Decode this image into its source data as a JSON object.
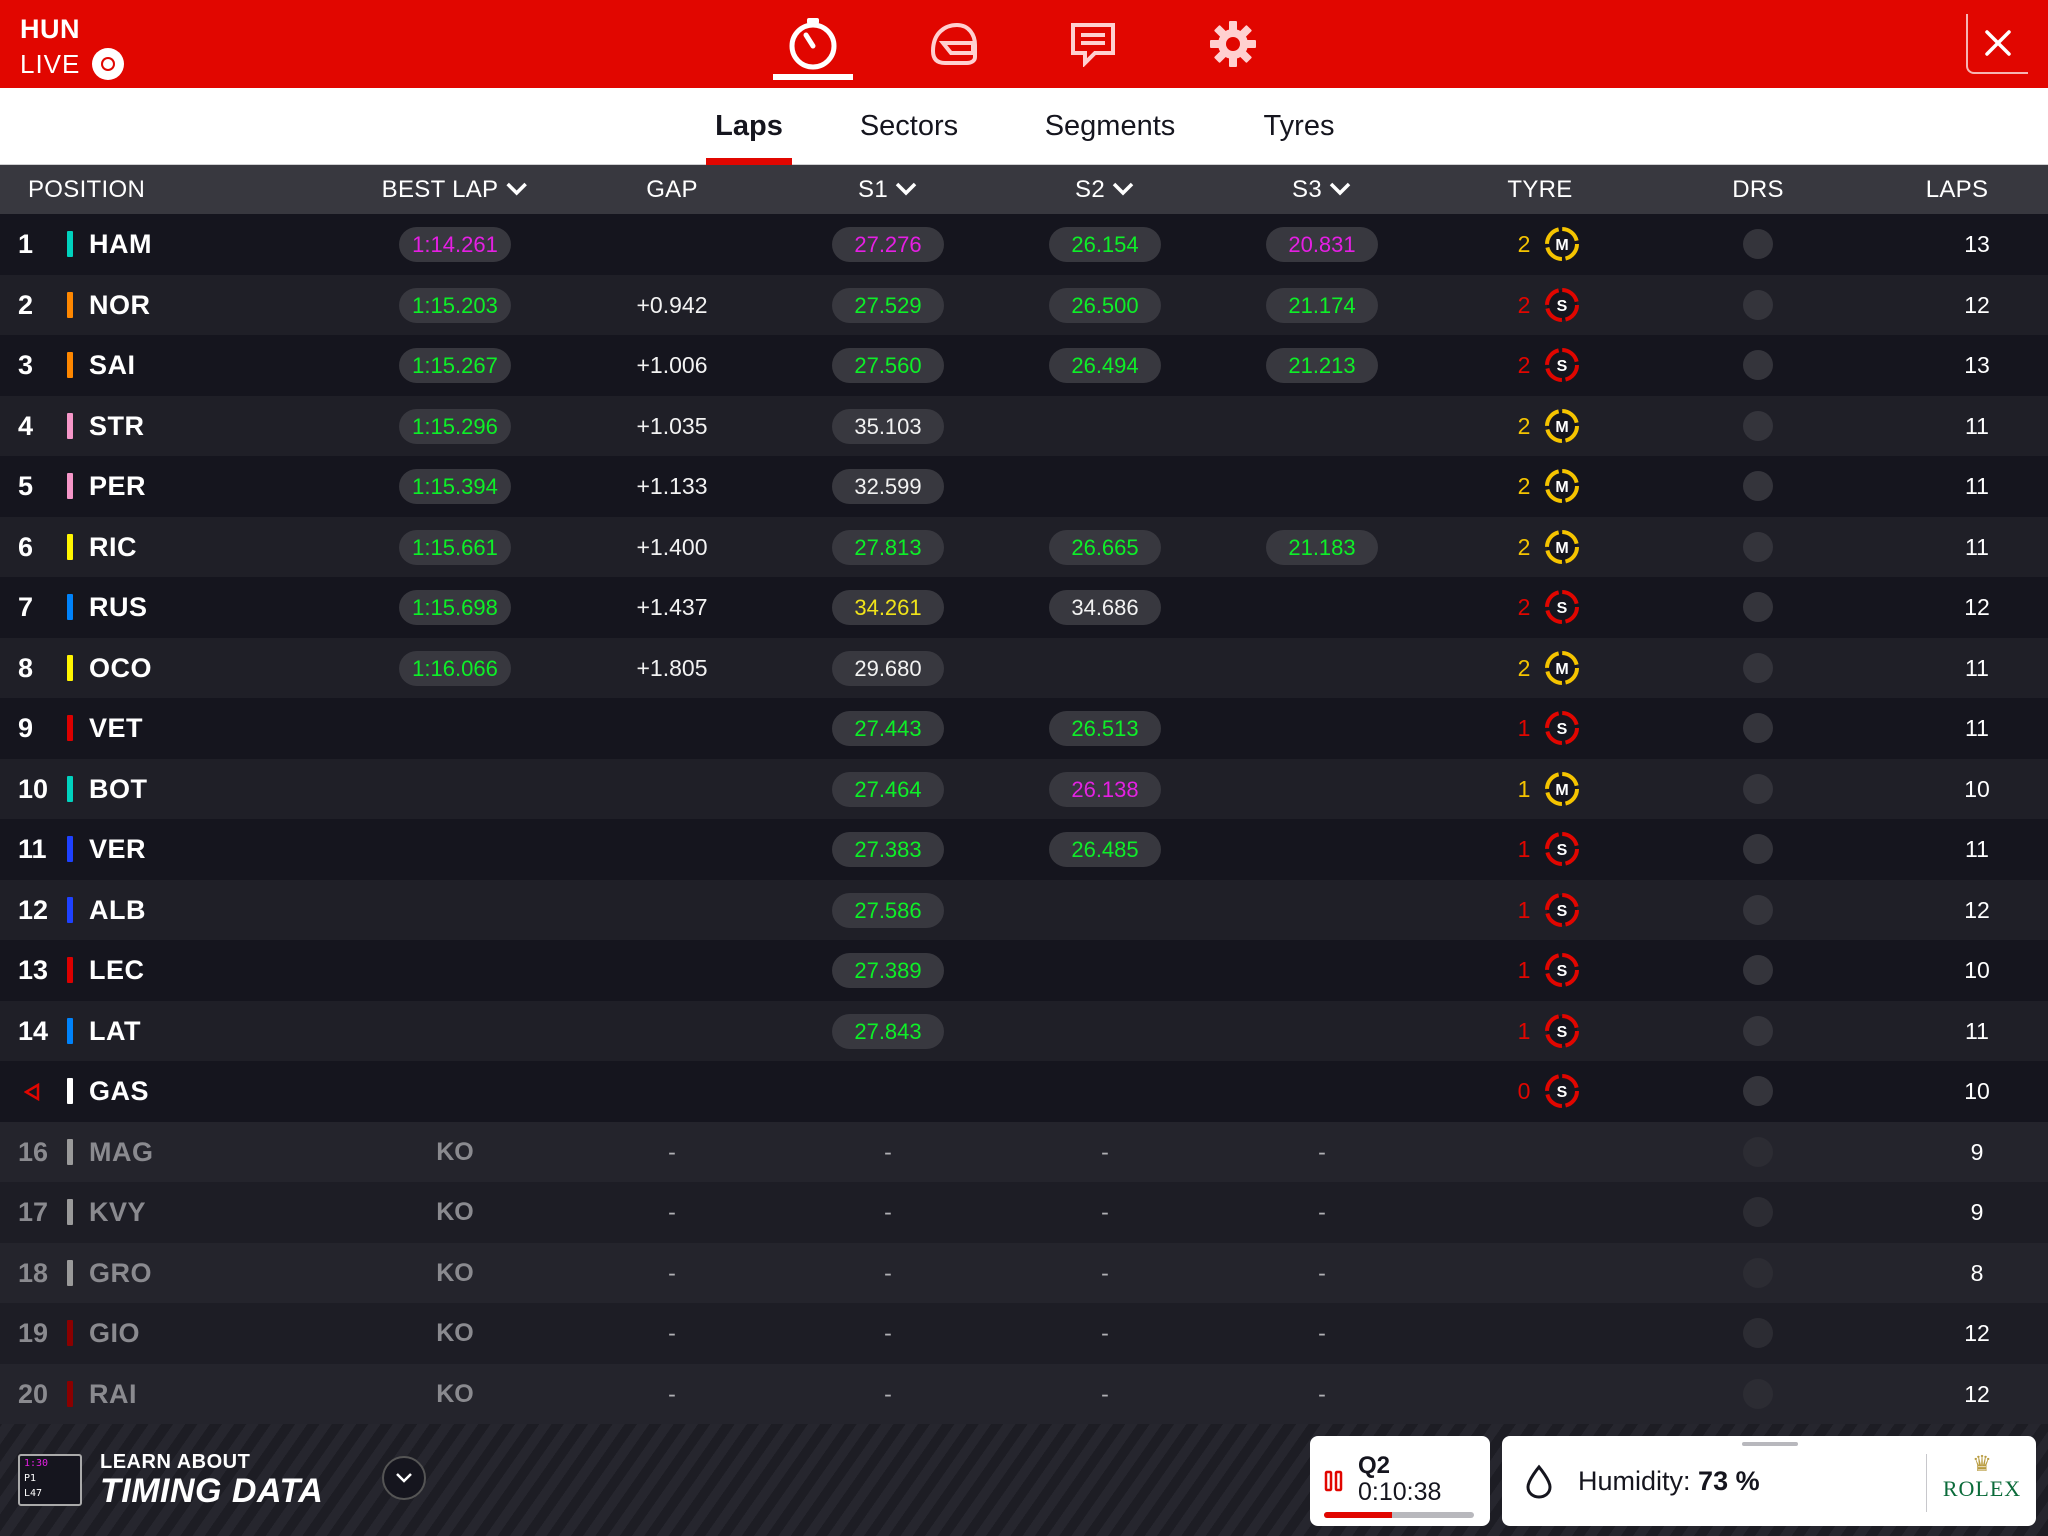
{
  "header": {
    "session_code": "HUN",
    "live_label": "LIVE",
    "nav": [
      "stopwatch-icon",
      "helmet-icon",
      "message-icon",
      "gear-icon"
    ],
    "accent": "#e10600"
  },
  "tabs": [
    {
      "label": "Laps",
      "active": true
    },
    {
      "label": "Sectors",
      "active": false
    },
    {
      "label": "Segments",
      "active": false
    },
    {
      "label": "Tyres",
      "active": false
    }
  ],
  "columns": {
    "position": "POSITION",
    "best_lap": "BEST LAP",
    "gap": "GAP",
    "s1": "S1",
    "s2": "S2",
    "s3": "S3",
    "tyre": "TYRE",
    "drs": "DRS",
    "laps": "LAPS"
  },
  "colors": {
    "green": "#0eef28",
    "purple": "#e51fe3",
    "yellow": "#f0e31a",
    "tyre_soft": "#e10600",
    "tyre_medium": "#f5c400"
  },
  "rows": [
    {
      "pos": "1",
      "driver": "HAM",
      "team": "#00d2be",
      "best": "1:14.261",
      "best_c": "purple",
      "gap": "",
      "s1": "27.276",
      "s1_c": "purple",
      "s2": "26.154",
      "s2_c": "green",
      "s3": "20.831",
      "s3_c": "purple",
      "stint": "2",
      "tyre": "M",
      "laps": "13"
    },
    {
      "pos": "2",
      "driver": "NOR",
      "team": "#ff8700",
      "best": "1:15.203",
      "best_c": "green",
      "gap": "+0.942",
      "s1": "27.529",
      "s1_c": "green",
      "s2": "26.500",
      "s2_c": "green",
      "s3": "21.174",
      "s3_c": "green",
      "stint": "2",
      "tyre": "S",
      "laps": "12"
    },
    {
      "pos": "3",
      "driver": "SAI",
      "team": "#ff8700",
      "best": "1:15.267",
      "best_c": "green",
      "gap": "+1.006",
      "s1": "27.560",
      "s1_c": "green",
      "s2": "26.494",
      "s2_c": "green",
      "s3": "21.213",
      "s3_c": "green",
      "stint": "2",
      "tyre": "S",
      "laps": "13"
    },
    {
      "pos": "4",
      "driver": "STR",
      "team": "#f596c8",
      "best": "1:15.296",
      "best_c": "green",
      "gap": "+1.035",
      "s1": "35.103",
      "s1_c": "white",
      "s2": "",
      "s2_c": "",
      "s3": "",
      "s3_c": "",
      "stint": "2",
      "tyre": "M",
      "laps": "11"
    },
    {
      "pos": "5",
      "driver": "PER",
      "team": "#f596c8",
      "best": "1:15.394",
      "best_c": "green",
      "gap": "+1.133",
      "s1": "32.599",
      "s1_c": "white",
      "s2": "",
      "s2_c": "",
      "s3": "",
      "s3_c": "",
      "stint": "2",
      "tyre": "M",
      "laps": "11"
    },
    {
      "pos": "6",
      "driver": "RIC",
      "team": "#fff500",
      "best": "1:15.661",
      "best_c": "green",
      "gap": "+1.400",
      "s1": "27.813",
      "s1_c": "green",
      "s2": "26.665",
      "s2_c": "green",
      "s3": "21.183",
      "s3_c": "green",
      "stint": "2",
      "tyre": "M",
      "laps": "11"
    },
    {
      "pos": "7",
      "driver": "RUS",
      "team": "#0082fa",
      "best": "1:15.698",
      "best_c": "green",
      "gap": "+1.437",
      "s1": "34.261",
      "s1_c": "yellow",
      "s2": "34.686",
      "s2_c": "white",
      "s3": "",
      "s3_c": "",
      "stint": "2",
      "tyre": "S",
      "laps": "12"
    },
    {
      "pos": "8",
      "driver": "OCO",
      "team": "#fff500",
      "best": "1:16.066",
      "best_c": "green",
      "gap": "+1.805",
      "s1": "29.680",
      "s1_c": "white",
      "s2": "",
      "s2_c": "",
      "s3": "",
      "s3_c": "",
      "stint": "2",
      "tyre": "M",
      "laps": "11"
    },
    {
      "pos": "9",
      "driver": "VET",
      "team": "#dc0000",
      "best": "",
      "best_c": "",
      "gap": "",
      "s1": "27.443",
      "s1_c": "green",
      "s2": "26.513",
      "s2_c": "green",
      "s3": "",
      "s3_c": "",
      "stint": "1",
      "tyre": "S",
      "laps": "11"
    },
    {
      "pos": "10",
      "driver": "BOT",
      "team": "#00d2be",
      "best": "",
      "best_c": "",
      "gap": "",
      "s1": "27.464",
      "s1_c": "green",
      "s2": "26.138",
      "s2_c": "purple",
      "s3": "",
      "s3_c": "",
      "stint": "1",
      "tyre": "M",
      "laps": "10"
    },
    {
      "pos": "11",
      "driver": "VER",
      "team": "#1e41ff",
      "best": "",
      "best_c": "",
      "gap": "",
      "s1": "27.383",
      "s1_c": "green",
      "s2": "26.485",
      "s2_c": "green",
      "s3": "",
      "s3_c": "",
      "stint": "1",
      "tyre": "S",
      "laps": "11"
    },
    {
      "pos": "12",
      "driver": "ALB",
      "team": "#1e41ff",
      "best": "",
      "best_c": "",
      "gap": "",
      "s1": "27.586",
      "s1_c": "green",
      "s2": "",
      "s2_c": "",
      "s3": "",
      "s3_c": "",
      "stint": "1",
      "tyre": "S",
      "laps": "12"
    },
    {
      "pos": "13",
      "driver": "LEC",
      "team": "#dc0000",
      "best": "",
      "best_c": "",
      "gap": "",
      "s1": "27.389",
      "s1_c": "green",
      "s2": "",
      "s2_c": "",
      "s3": "",
      "s3_c": "",
      "stint": "1",
      "tyre": "S",
      "laps": "10"
    },
    {
      "pos": "14",
      "driver": "LAT",
      "team": "#0082fa",
      "best": "",
      "best_c": "",
      "gap": "",
      "s1": "27.843",
      "s1_c": "green",
      "s2": "",
      "s2_c": "",
      "s3": "",
      "s3_c": "",
      "stint": "1",
      "tyre": "S",
      "laps": "11"
    },
    {
      "pos": "",
      "pos_icon": "pit-arrow-icon",
      "driver": "GAS",
      "team": "#ffffff",
      "best": "",
      "best_c": "",
      "gap": "",
      "s1": "",
      "s1_c": "",
      "s2": "",
      "s2_c": "",
      "s3": "",
      "s3_c": "",
      "stint": "0",
      "tyre": "S",
      "laps": "10"
    },
    {
      "pos": "16",
      "driver": "MAG",
      "team": "#9a9a9a",
      "knocked_out": true,
      "best": "KO",
      "gap": "-",
      "s1": "-",
      "s2": "-",
      "s3": "-",
      "stint": "",
      "tyre": "",
      "laps": "9"
    },
    {
      "pos": "17",
      "driver": "KVY",
      "team": "#9a9a9a",
      "knocked_out": true,
      "best": "KO",
      "gap": "-",
      "s1": "-",
      "s2": "-",
      "s3": "-",
      "stint": "",
      "tyre": "",
      "laps": "9"
    },
    {
      "pos": "18",
      "driver": "GRO",
      "team": "#9a9a9a",
      "knocked_out": true,
      "best": "KO",
      "gap": "-",
      "s1": "-",
      "s2": "-",
      "s3": "-",
      "stint": "",
      "tyre": "",
      "laps": "8"
    },
    {
      "pos": "19",
      "driver": "GIO",
      "team": "#8b0000",
      "knocked_out": true,
      "best": "KO",
      "gap": "-",
      "s1": "-",
      "s2": "-",
      "s3": "-",
      "stint": "",
      "tyre": "",
      "laps": "12"
    },
    {
      "pos": "20",
      "driver": "RAI",
      "team": "#8b0000",
      "knocked_out": true,
      "best": "KO",
      "gap": "-",
      "s1": "-",
      "s2": "-",
      "s3": "-",
      "stint": "",
      "tyre": "",
      "laps": "12"
    }
  ],
  "footer": {
    "logo_lines": [
      "1:30",
      "P1",
      "L47"
    ],
    "learn_label": "LEARN ABOUT",
    "timing_label": "TIMING DATA",
    "session_name": "Q2",
    "session_time": "0:10:38",
    "session_progress": 0.45,
    "humidity_label": "Humidity:",
    "humidity_value": "73 %",
    "sponsor": "ROLEX"
  }
}
